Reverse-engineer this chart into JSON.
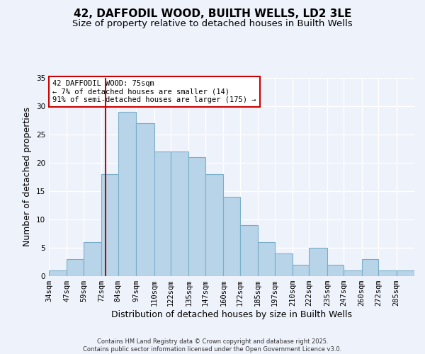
{
  "title": "42, DAFFODIL WOOD, BUILTH WELLS, LD2 3LE",
  "subtitle": "Size of property relative to detached houses in Builth Wells",
  "xlabel": "Distribution of detached houses by size in Builth Wells",
  "ylabel": "Number of detached properties",
  "bin_labels": [
    "34sqm",
    "47sqm",
    "59sqm",
    "72sqm",
    "84sqm",
    "97sqm",
    "110sqm",
    "122sqm",
    "135sqm",
    "147sqm",
    "160sqm",
    "172sqm",
    "185sqm",
    "197sqm",
    "210sqm",
    "222sqm",
    "235sqm",
    "247sqm",
    "260sqm",
    "272sqm",
    "285sqm"
  ],
  "bin_edges": [
    34,
    47,
    59,
    72,
    84,
    97,
    110,
    122,
    135,
    147,
    160,
    172,
    185,
    197,
    210,
    222,
    235,
    247,
    260,
    272,
    285
  ],
  "counts": [
    1,
    3,
    6,
    18,
    29,
    27,
    22,
    22,
    21,
    18,
    14,
    9,
    6,
    4,
    2,
    5,
    2,
    1,
    3,
    1,
    1
  ],
  "bar_color": "#b8d4e8",
  "bar_edge_color": "#7aaec8",
  "reference_line_x": 75,
  "reference_line_color": "#cc0000",
  "ylim": [
    0,
    35
  ],
  "yticks": [
    0,
    5,
    10,
    15,
    20,
    25,
    30,
    35
  ],
  "annotation_text": "42 DAFFODIL WOOD: 75sqm\n← 7% of detached houses are smaller (14)\n91% of semi-detached houses are larger (175) →",
  "annotation_box_color": "#ffffff",
  "annotation_box_edge_color": "#cc0000",
  "footer_line1": "Contains HM Land Registry data © Crown copyright and database right 2025.",
  "footer_line2": "Contains public sector information licensed under the Open Government Licence v3.0.",
  "background_color": "#eef2fb",
  "grid_color": "#ffffff",
  "title_fontsize": 11,
  "subtitle_fontsize": 9.5,
  "axis_label_fontsize": 9,
  "tick_fontsize": 7.5,
  "annotation_fontsize": 7.5,
  "footer_fontsize": 6
}
